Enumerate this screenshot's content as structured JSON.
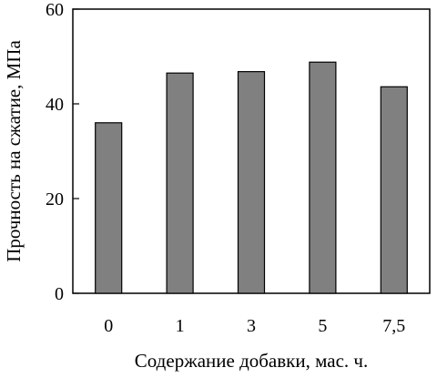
{
  "chart_data": {
    "type": "bar",
    "categories": [
      "0",
      "1",
      "3",
      "5",
      "7,5"
    ],
    "values": [
      36,
      46.5,
      46.8,
      48.8,
      43.6
    ],
    "xlabel": "Содержание добавки, мас. ч.",
    "ylabel": "Прочность на сжатие, МПа",
    "ylim": [
      0,
      60
    ],
    "yticks": [
      0,
      20,
      40,
      60
    ],
    "grid": false,
    "bar_color": "#808080",
    "bar_stroke": "#000000"
  }
}
